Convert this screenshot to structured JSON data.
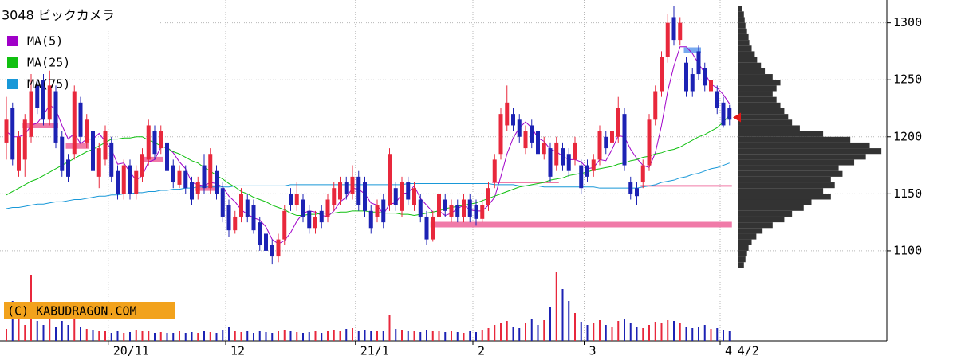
{
  "chart_data": {
    "type": "candlestick",
    "title": "3048 ビックカメラ",
    "copyright": "(C) KABUDRAGON.COM",
    "ylim": [
      1021,
      1320
    ],
    "yticks": [
      1100,
      1150,
      1200,
      1250,
      1300
    ],
    "grid": true,
    "xticks": [
      {
        "value": 17,
        "label": "20/11"
      },
      {
        "value": 36,
        "label": "12"
      },
      {
        "value": 57,
        "label": "21/1"
      },
      {
        "value": 76,
        "label": "2"
      },
      {
        "value": 94,
        "label": "3"
      },
      {
        "value": 116,
        "label": "4"
      }
    ],
    "latest_date_label": "4/2",
    "up_color": "#e8283c",
    "down_color": "#1c22b4",
    "ohlc": {
      "open": [
        1195,
        1225,
        1170,
        1180,
        1200,
        1245,
        1250,
        1215,
        1240,
        1200,
        1180,
        1185,
        1230,
        1195,
        1205,
        1165,
        1180,
        1195,
        1170,
        1150,
        1175,
        1150,
        1165,
        1180,
        1205,
        1190,
        1195,
        1175,
        1158,
        1170,
        1160,
        1150,
        1175,
        1155,
        1170,
        1155,
        1140,
        1118,
        1130,
        1145,
        1140,
        1125,
        1115,
        1105,
        1095,
        1110,
        1150,
        1140,
        1145,
        1135,
        1120,
        1135,
        1130,
        1140,
        1145,
        1160,
        1150,
        1165,
        1160,
        1135,
        1130,
        1145,
        1140,
        1155,
        1135,
        1160,
        1140,
        1145,
        1130,
        1110,
        1130,
        1145,
        1130,
        1140,
        1130,
        1145,
        1140,
        1128,
        1140,
        1160,
        1185,
        1210,
        1220,
        1215,
        1190,
        1210,
        1205,
        1185,
        1190,
        1175,
        1190,
        1185,
        1180,
        1175,
        1175,
        1170,
        1180,
        1200,
        1195,
        1200,
        1220,
        1160,
        1155,
        1160,
        1175,
        1215,
        1240,
        1270,
        1305,
        1285,
        1265,
        1255,
        1275,
        1260,
        1240,
        1240,
        1230,
        1225
      ],
      "high": [
        1235,
        1230,
        1205,
        1220,
        1255,
        1250,
        1255,
        1258,
        1245,
        1205,
        1185,
        1245,
        1235,
        1220,
        1210,
        1195,
        1210,
        1200,
        1175,
        1180,
        1180,
        1175,
        1190,
        1215,
        1210,
        1210,
        1200,
        1180,
        1175,
        1175,
        1165,
        1165,
        1185,
        1190,
        1175,
        1160,
        1145,
        1135,
        1155,
        1150,
        1145,
        1130,
        1120,
        1110,
        1115,
        1140,
        1155,
        1160,
        1150,
        1140,
        1135,
        1140,
        1150,
        1160,
        1165,
        1165,
        1175,
        1170,
        1165,
        1140,
        1145,
        1150,
        1190,
        1160,
        1165,
        1165,
        1160,
        1150,
        1135,
        1135,
        1155,
        1150,
        1145,
        1145,
        1150,
        1150,
        1145,
        1145,
        1160,
        1185,
        1225,
        1245,
        1225,
        1220,
        1210,
        1215,
        1210,
        1200,
        1195,
        1200,
        1195,
        1190,
        1200,
        1180,
        1180,
        1185,
        1210,
        1205,
        1210,
        1235,
        1225,
        1165,
        1160,
        1180,
        1220,
        1245,
        1275,
        1308,
        1315,
        1305,
        1270,
        1260,
        1280,
        1265,
        1255,
        1245,
        1235,
        1228
      ],
      "low": [
        1180,
        1175,
        1165,
        1165,
        1195,
        1220,
        1210,
        1210,
        1190,
        1165,
        1160,
        1180,
        1195,
        1190,
        1165,
        1155,
        1175,
        1160,
        1145,
        1145,
        1145,
        1145,
        1160,
        1175,
        1180,
        1185,
        1165,
        1155,
        1155,
        1150,
        1140,
        1145,
        1150,
        1150,
        1145,
        1125,
        1112,
        1115,
        1125,
        1125,
        1115,
        1100,
        1095,
        1088,
        1090,
        1105,
        1135,
        1135,
        1125,
        1115,
        1115,
        1120,
        1125,
        1135,
        1140,
        1145,
        1145,
        1135,
        1130,
        1115,
        1125,
        1120,
        1135,
        1135,
        1130,
        1140,
        1135,
        1125,
        1105,
        1108,
        1125,
        1130,
        1125,
        1125,
        1125,
        1125,
        1122,
        1125,
        1135,
        1155,
        1180,
        1205,
        1205,
        1195,
        1185,
        1190,
        1180,
        1180,
        1160,
        1170,
        1170,
        1165,
        1175,
        1150,
        1160,
        1165,
        1175,
        1185,
        1190,
        1195,
        1170,
        1145,
        1140,
        1155,
        1170,
        1210,
        1235,
        1265,
        1280,
        1280,
        1235,
        1235,
        1250,
        1240,
        1235,
        1220,
        1208,
        1210
      ],
      "close": [
        1215,
        1180,
        1200,
        1215,
        1240,
        1225,
        1215,
        1245,
        1195,
        1170,
        1165,
        1240,
        1200,
        1215,
        1170,
        1190,
        1205,
        1165,
        1150,
        1175,
        1150,
        1170,
        1185,
        1210,
        1185,
        1205,
        1170,
        1160,
        1170,
        1155,
        1145,
        1160,
        1155,
        1185,
        1150,
        1130,
        1118,
        1130,
        1150,
        1130,
        1118,
        1105,
        1100,
        1095,
        1110,
        1135,
        1140,
        1150,
        1130,
        1120,
        1130,
        1125,
        1145,
        1155,
        1160,
        1150,
        1165,
        1140,
        1135,
        1120,
        1140,
        1125,
        1185,
        1140,
        1160,
        1145,
        1155,
        1130,
        1110,
        1130,
        1150,
        1135,
        1140,
        1130,
        1145,
        1130,
        1128,
        1140,
        1155,
        1180,
        1220,
        1230,
        1210,
        1200,
        1205,
        1195,
        1185,
        1195,
        1165,
        1195,
        1175,
        1170,
        1195,
        1155,
        1165,
        1180,
        1205,
        1190,
        1205,
        1225,
        1175,
        1150,
        1148,
        1175,
        1215,
        1240,
        1270,
        1300,
        1285,
        1300,
        1240,
        1240,
        1255,
        1245,
        1250,
        1225,
        1210,
        1215
      ]
    },
    "moving_averages": [
      {
        "name": "MA(5)",
        "color": "#a000c8",
        "values": [
          1205,
          1200,
          1200,
          1202,
          1210,
          1212,
          1219,
          1228,
          1224,
          1210,
          1198,
          1203,
          1194,
          1198,
          1198,
          1203,
          1196,
          1189,
          1176,
          1177,
          1169,
          1162,
          1166,
          1178,
          1180,
          1191,
          1191,
          1186,
          1178,
          1172,
          1160,
          1158,
          1157,
          1160,
          1159,
          1156,
          1148,
          1143,
          1136,
          1132,
          1129,
          1127,
          1121,
          1110,
          1106,
          1109,
          1116,
          1126,
          1133,
          1135,
          1134,
          1131,
          1130,
          1135,
          1143,
          1147,
          1155,
          1154,
          1150,
          1142,
          1140,
          1132,
          1141,
          1142,
          1150,
          1151,
          1157,
          1146,
          1140,
          1134,
          1135,
          1131,
          1133,
          1137,
          1140,
          1136,
          1135,
          1135,
          1140,
          1147,
          1165,
          1185,
          1199,
          1208,
          1213,
          1208,
          1199,
          1196,
          1189,
          1187,
          1183,
          1180,
          1180,
          1178,
          1172,
          1173,
          1180,
          1179,
          1189,
          1201,
          1200,
          1189,
          1181,
          1175,
          1173,
          1186,
          1210,
          1240,
          1262,
          1279,
          1279,
          1273,
          1264,
          1256,
          1246,
          1243,
          1237,
          1229
        ]
      },
      {
        "name": "MA(25)",
        "color": "#10c010",
        "values": [
          1149,
          1152,
          1155,
          1158,
          1161,
          1163,
          1166,
          1169,
          1172,
          1175,
          1178,
          1181,
          1184,
          1187,
          1189,
          1192,
          1195,
          1198,
          1198,
          1199,
          1199,
          1200,
          1200,
          1197,
          1195,
          1192,
          1190,
          1187,
          1185,
          1182,
          1179,
          1177,
          1173,
          1170,
          1166,
          1163,
          1159,
          1156,
          1152,
          1150,
          1147,
          1145,
          1143,
          1140,
          1138,
          1136,
          1133,
          1131,
          1131,
          1132,
          1132,
          1133,
          1133,
          1133,
          1134,
          1134,
          1135,
          1135,
          1135,
          1134,
          1134,
          1133,
          1133,
          1133,
          1132,
          1132,
          1131,
          1132,
          1133,
          1134,
          1135,
          1137,
          1138,
          1139,
          1140,
          1141,
          1142,
          1144,
          1146,
          1148,
          1150,
          1152,
          1154,
          1156,
          1157,
          1158,
          1159,
          1160,
          1162,
          1163,
          1164,
          1166,
          1167,
          1168,
          1169,
          1171,
          1172,
          1173,
          1174,
          1176,
          1177,
          1179,
          1180,
          1182,
          1183,
          1185,
          1186,
          1188,
          1189,
          1191,
          1194,
          1197,
          1200,
          1202,
          1205,
          1208,
          1213,
          1219
        ]
      },
      {
        "name": "MA(75)",
        "color": "#1898d8",
        "values": [
          1137,
          1138,
          1138,
          1139,
          1140,
          1141,
          1141,
          1142,
          1143,
          1143,
          1144,
          1145,
          1145,
          1146,
          1147,
          1148,
          1148,
          1149,
          1149,
          1150,
          1150,
          1151,
          1151,
          1152,
          1152,
          1153,
          1153,
          1154,
          1154,
          1155,
          1155,
          1156,
          1156,
          1156,
          1156,
          1156,
          1156,
          1157,
          1157,
          1157,
          1157,
          1157,
          1157,
          1157,
          1157,
          1157,
          1158,
          1158,
          1158,
          1158,
          1158,
          1158,
          1158,
          1158,
          1158,
          1158,
          1158,
          1158,
          1158,
          1158,
          1158,
          1158,
          1158,
          1158,
          1158,
          1159,
          1159,
          1159,
          1159,
          1159,
          1159,
          1159,
          1159,
          1159,
          1159,
          1159,
          1159,
          1159,
          1159,
          1158,
          1158,
          1158,
          1158,
          1157,
          1157,
          1157,
          1157,
          1156,
          1156,
          1156,
          1156,
          1156,
          1156,
          1156,
          1156,
          1156,
          1155,
          1155,
          1155,
          1155,
          1155,
          1155,
          1155,
          1156,
          1157,
          1158,
          1160,
          1161,
          1162,
          1164,
          1165,
          1167,
          1168,
          1170,
          1172,
          1173,
          1175,
          1177
        ]
      }
    ],
    "volume": {
      "ylim": [
        0,
        100
      ],
      "values": [
        15,
        50,
        30,
        20,
        83,
        25,
        20,
        30,
        18,
        25,
        20,
        28,
        18,
        15,
        14,
        12,
        12,
        10,
        12,
        10,
        11,
        14,
        13,
        12,
        10,
        11,
        10,
        10,
        12,
        10,
        11,
        10,
        12,
        11,
        10,
        14,
        18,
        12,
        11,
        12,
        10,
        12,
        11,
        10,
        12,
        14,
        12,
        11,
        10,
        11,
        12,
        10,
        12,
        14,
        13,
        15,
        16,
        12,
        14,
        12,
        13,
        12,
        33,
        15,
        14,
        13,
        12,
        11,
        14,
        13,
        12,
        11,
        12,
        11,
        10,
        12,
        11,
        14,
        16,
        20,
        22,
        25,
        18,
        16,
        22,
        28,
        20,
        26,
        42,
        86,
        65,
        50,
        35,
        24,
        20,
        22,
        26,
        20,
        18,
        25,
        28,
        22,
        18,
        16,
        20,
        24,
        22,
        26,
        25,
        22,
        18,
        16,
        18,
        20,
        15,
        16,
        14,
        12
      ]
    },
    "price_volume": {
      "color": "#333333",
      "xlim": [
        0,
        190
      ],
      "bins": [
        1085,
        1090,
        1095,
        1100,
        1105,
        1110,
        1115,
        1120,
        1125,
        1130,
        1135,
        1140,
        1145,
        1150,
        1155,
        1160,
        1165,
        1170,
        1175,
        1180,
        1185,
        1190,
        1195,
        1200,
        1205,
        1210,
        1215,
        1220,
        1225,
        1230,
        1235,
        1240,
        1245,
        1250,
        1255,
        1260,
        1265,
        1270,
        1275,
        1280,
        1285,
        1290,
        1295,
        1300,
        1305,
        1310,
        1315
      ],
      "values": [
        8,
        10,
        12,
        14,
        18,
        24,
        32,
        45,
        60,
        70,
        85,
        95,
        120,
        110,
        125,
        120,
        135,
        130,
        150,
        165,
        185,
        170,
        145,
        110,
        80,
        70,
        65,
        60,
        55,
        50,
        45,
        50,
        55,
        45,
        35,
        30,
        25,
        22,
        18,
        15,
        14,
        12,
        10,
        9,
        8,
        6
      ]
    },
    "current_price": 1217,
    "current_price_color": "#e01818",
    "levels": [
      {
        "price": 1210,
        "from": 3,
        "to": 8,
        "color": "#f07aa8",
        "style": "thick"
      },
      {
        "price": 1192,
        "from": 10,
        "to": 13,
        "color": "#f07aa8",
        "style": "thick"
      },
      {
        "price": 1180,
        "from": 22,
        "to": 25,
        "color": "#f07aa8",
        "style": "thick"
      },
      {
        "price": 1155,
        "from": 31,
        "to": 34,
        "color": "#f07aa8",
        "style": "thick"
      },
      {
        "price": 1160,
        "from": 79,
        "to": 89,
        "color": "#f07aa8",
        "style": "thin"
      },
      {
        "price": 1123,
        "from": 69,
        "to": 117,
        "color": "#f07aa8",
        "style": "thick"
      },
      {
        "price": 1157,
        "from": 103,
        "to": 117,
        "color": "#f07aa8",
        "style": "thin"
      },
      {
        "price": 1276,
        "from": 110,
        "to": 112,
        "color": "#78aaf0",
        "style": "thick"
      }
    ]
  }
}
